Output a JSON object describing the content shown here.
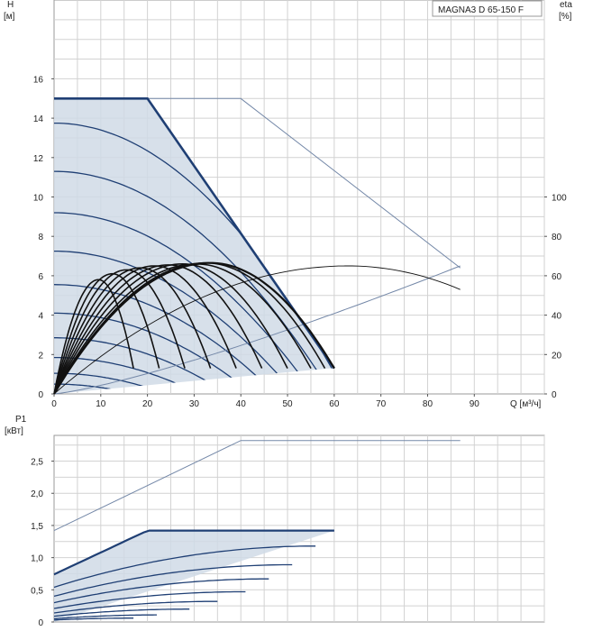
{
  "chart_data": [
    {
      "type": "line",
      "title": "",
      "model_label": "MAGNA3 D 65-150 F",
      "xlabel": "Q [м³/ч]",
      "x_tick_labels": [
        "0",
        "10",
        "20",
        "30",
        "40",
        "50",
        "60",
        "70",
        "80",
        "90"
      ],
      "xlim": [
        0,
        105
      ],
      "ylabel_left": "H",
      "ylabel_left_unit": "[м]",
      "y_tick_labels_left": [
        "0",
        "2",
        "4",
        "6",
        "8",
        "10",
        "12",
        "14",
        "16"
      ],
      "ylim_left": [
        0,
        20
      ],
      "ylabel_right": "eta",
      "ylabel_right_unit": "[%]",
      "y_tick_labels_right": [
        "0",
        "20",
        "40",
        "60",
        "80",
        "100"
      ],
      "ylim_right": [
        0,
        200
      ],
      "grid": true,
      "colors": {
        "curve": "#1f3f74",
        "fill": "#d0dae6",
        "eta": "#111111",
        "twin": "#7488a8"
      },
      "head_envelope": {
        "x": [
          0,
          20,
          60,
          59,
          0
        ],
        "y": [
          15,
          15,
          1.3,
          1.3,
          0
        ]
      },
      "head_speed_curves": [
        {
          "h0": 13.75,
          "qmax": 62.5
        },
        {
          "h0": 11.3,
          "qmax": 59.5
        },
        {
          "h0": 9.2,
          "qmax": 55.7
        },
        {
          "h0": 7.25,
          "qmax": 51.6
        },
        {
          "h0": 5.55,
          "qmax": 47.4
        },
        {
          "h0": 4.1,
          "qmax": 42.5
        },
        {
          "h0": 2.85,
          "qmax": 37.2
        },
        {
          "h0": 1.85,
          "qmax": 31.0
        },
        {
          "h0": 1.05,
          "qmax": 24.0
        },
        {
          "h0": 0.5,
          "qmax": 17.0
        }
      ],
      "eta_curves": [
        {
          "x_end": 17,
          "peak_x": 9.5,
          "peak": 58
        },
        {
          "x_end": 22.5,
          "peak_x": 12.5,
          "peak": 61
        },
        {
          "x_end": 28,
          "peak_x": 15.5,
          "peak": 63
        },
        {
          "x_end": 33.5,
          "peak_x": 18.5,
          "peak": 64
        },
        {
          "x_end": 39,
          "peak_x": 21.5,
          "peak": 65
        },
        {
          "x_end": 44.5,
          "peak_x": 24.5,
          "peak": 65.5
        },
        {
          "x_end": 50,
          "peak_x": 27.5,
          "peak": 66
        },
        {
          "x_end": 55,
          "peak_x": 30.5,
          "peak": 66
        },
        {
          "x_end": 58,
          "peak_x": 32.5,
          "peak": 66.5
        },
        {
          "x_end": 60,
          "peak_x": 33.5,
          "peak": 66.5
        }
      ],
      "eta_twin_curve": {
        "x_end": 87,
        "peak_x": 63,
        "peak": 65
      },
      "twin_head_curve": {
        "x": [
          20,
          40,
          87
        ],
        "y": [
          15,
          15,
          6.4
        ]
      },
      "twin_system_curve": {
        "x": [
          0,
          87
        ],
        "h_end": 6.5
      }
    },
    {
      "type": "line",
      "title": "",
      "ylabel": "P1",
      "ylabel_unit": "[кВт]",
      "y_tick_labels": [
        "0",
        "0,5",
        "1,0",
        "1,5",
        "2,0",
        "2,5"
      ],
      "ylim": [
        0,
        2.9
      ],
      "grid": true,
      "power_envelope": {
        "x": [
          0,
          20,
          60,
          0
        ],
        "y": [
          0.72,
          1.42,
          1.42,
          0
        ]
      },
      "power_speed_curves": [
        {
          "p0": 0.74,
          "p_max": 1.42,
          "x_end": 60,
          "x_flat": 33
        },
        {
          "p0": 0.54,
          "p_max": 1.18,
          "x_end": 56
        },
        {
          "p0": 0.4,
          "p_max": 0.89,
          "x_end": 51
        },
        {
          "p0": 0.3,
          "p_max": 0.67,
          "x_end": 46
        },
        {
          "p0": 0.21,
          "p_max": 0.47,
          "x_end": 41
        },
        {
          "p0": 0.14,
          "p_max": 0.32,
          "x_end": 35
        },
        {
          "p0": 0.09,
          "p_max": 0.2,
          "x_end": 29
        },
        {
          "p0": 0.05,
          "p_max": 0.11,
          "x_end": 22
        },
        {
          "p0": 0.03,
          "p_max": 0.06,
          "x_end": 17
        }
      ],
      "twin_power_curve": {
        "x": [
          0,
          40,
          87
        ],
        "y": [
          1.42,
          2.82,
          2.82
        ]
      }
    }
  ]
}
